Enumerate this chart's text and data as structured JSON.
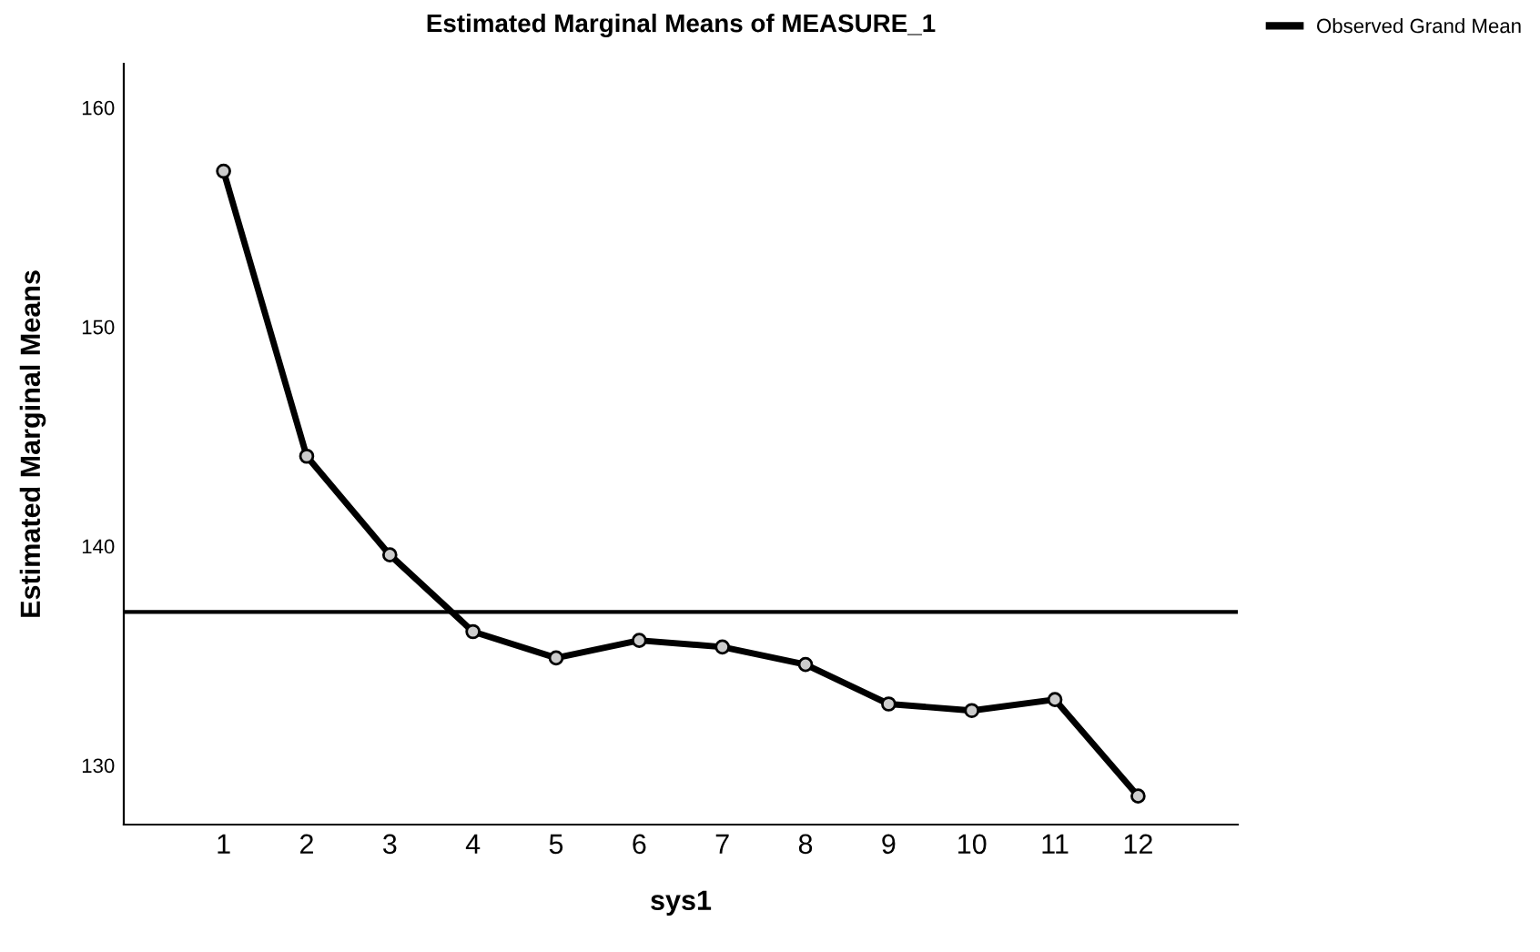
{
  "chart_data": {
    "type": "line",
    "title": "Estimated Marginal Means of MEASURE_1",
    "xlabel": "sys1",
    "ylabel": "Estimated Marginal Means",
    "categories": [
      "1",
      "2",
      "3",
      "4",
      "5",
      "6",
      "7",
      "8",
      "9",
      "10",
      "11",
      "12"
    ],
    "series": [
      {
        "color": "#000000",
        "values": [
          157.1,
          144.1,
          139.6,
          136.1,
          134.9,
          135.7,
          135.4,
          134.6,
          132.8,
          132.5,
          133.0,
          128.6
        ]
      }
    ],
    "ref_lines": [
      {
        "axis": "y",
        "value": 137.0,
        "label": "Observed Grand Mean",
        "color": "#000000"
      }
    ],
    "ylim": [
      127.3,
      162
    ],
    "yticks": [
      130,
      140,
      150,
      160
    ],
    "marker": "circle",
    "legend": "top right",
    "grid": false
  }
}
